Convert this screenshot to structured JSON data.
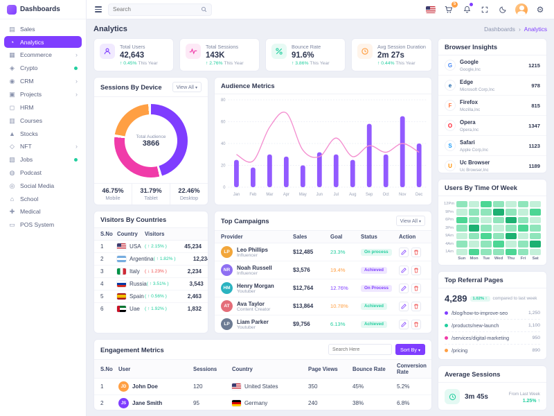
{
  "colors": {
    "primary": "#7f3dff",
    "pink": "#f03ba9",
    "success": "#21ce9e",
    "warning": "#ff9f43",
    "danger": "#ef4b4b",
    "line": "#f48fd0"
  },
  "brand": {
    "title": "Dashboards"
  },
  "topbar": {
    "search_placeholder": "Search",
    "cart_badge": "5"
  },
  "sidebar": {
    "items": [
      {
        "label": "Sales",
        "icon": "▤"
      },
      {
        "label": "Analytics",
        "icon": "◔",
        "active": true
      },
      {
        "label": "Ecommerce",
        "icon": "▦",
        "chevron": true
      },
      {
        "label": "Crypto",
        "icon": "◈",
        "dot": true
      },
      {
        "label": "CRM",
        "icon": "◉",
        "chevron": true
      },
      {
        "label": "Projects",
        "icon": "▣",
        "chevron": true
      },
      {
        "label": "HRM",
        "icon": "◻"
      },
      {
        "label": "Courses",
        "icon": "▥"
      },
      {
        "label": "Stocks",
        "icon": "▲"
      },
      {
        "label": "NFT",
        "icon": "◇",
        "chevron": true
      },
      {
        "label": "Jobs",
        "icon": "▧",
        "dot": true
      },
      {
        "label": "Podcast",
        "icon": "◍"
      },
      {
        "label": "Social Media",
        "icon": "◎"
      },
      {
        "label": "School",
        "icon": "⌂"
      },
      {
        "label": "Medical",
        "icon": "✚"
      },
      {
        "label": "POS System",
        "icon": "▭"
      }
    ]
  },
  "page": {
    "title": "Analytics",
    "breadcrumb_root": "Dashboards",
    "breadcrumb_current": "Analytics"
  },
  "stats": [
    {
      "label": "Total Users",
      "value": "42,643",
      "trend": "0.45%",
      "period": "This Year",
      "icon": "users-icon",
      "color": "#7f3dff"
    },
    {
      "label": "Total Sessions",
      "value": "143K",
      "trend": "2.76%",
      "period": "This Year",
      "icon": "sessions-icon",
      "color": "#f03ba9"
    },
    {
      "label": "Bounce Rate",
      "value": "91.6%",
      "trend": "3.86%",
      "period": "This Year",
      "icon": "bounce-icon",
      "color": "#21ce9e"
    },
    {
      "label": "Avg Session Duration",
      "value": "2m 27s",
      "trend": "0.44%",
      "period": "This Year",
      "icon": "duration-icon",
      "color": "#ff9f43"
    }
  ],
  "sessions_by_device": {
    "title": "Sessions By Device",
    "action": "View All",
    "center_label": "Total Audience",
    "center_value": "3866",
    "segments": [
      {
        "label": "Mobile",
        "pct": "46.75%",
        "value": 46.75,
        "color": "#7f3dff"
      },
      {
        "label": "Tablet",
        "pct": "31.79%",
        "value": 31.79,
        "color": "#f03ba9"
      },
      {
        "label": "Desktop",
        "pct": "22.46%",
        "value": 22.46,
        "color": "#ff9f43"
      }
    ]
  },
  "audience_metrics": {
    "title": "Audience Metrics",
    "chart": {
      "type": "bar+line",
      "categories": [
        "Jan",
        "Feb",
        "Mar",
        "Apr",
        "May",
        "Jun",
        "Jul",
        "Aug",
        "Sep",
        "Oct",
        "Nov",
        "Dec"
      ],
      "bar_series": {
        "name": "Sessions",
        "values": [
          25,
          18,
          30,
          28,
          20,
          32,
          30,
          25,
          58,
          30,
          65,
          40
        ]
      },
      "line_series": {
        "name": "Trend",
        "values": [
          30,
          24,
          55,
          68,
          34,
          28,
          45,
          28,
          38,
          32,
          40,
          32
        ]
      },
      "ylim": [
        0,
        80
      ],
      "yticks": [
        0,
        20,
        40,
        60,
        80
      ]
    }
  },
  "visitors_by_countries": {
    "title": "Visitors By Countries",
    "columns": [
      "S.No",
      "Country",
      "Visitors"
    ],
    "rows": [
      {
        "no": "1",
        "country": "USA",
        "flag": "usa",
        "trend": "2.15%",
        "dir": "up",
        "value": "45,234"
      },
      {
        "no": "2",
        "country": "Argentina",
        "flag": "argentina",
        "trend": "1.82%",
        "dir": "up",
        "value": "12,234"
      },
      {
        "no": "3",
        "country": "Italy",
        "flag": "italy",
        "trend": "1.23%",
        "dir": "down",
        "value": "2,234"
      },
      {
        "no": "4",
        "country": "Russia",
        "flag": "russia",
        "trend": "3.51%",
        "dir": "up",
        "value": "3,543"
      },
      {
        "no": "5",
        "country": "Spain",
        "flag": "spain",
        "trend": "0.56%",
        "dir": "up",
        "value": "2,463"
      },
      {
        "no": "6",
        "country": "Uae",
        "flag": "uae",
        "trend": "1.92%",
        "dir": "up",
        "value": "1,832"
      }
    ]
  },
  "top_campaigns": {
    "title": "Top Campaigns",
    "action": "View All",
    "columns": [
      "Provider",
      "Sales",
      "Goal",
      "Status",
      "Action"
    ],
    "rows": [
      {
        "name": "Leo Phillips",
        "role": "Influencer",
        "initials": "LP",
        "avatar_color": "#f2a63b",
        "sales": "$12,485",
        "goal": "23.3%",
        "goal_color": "#21ce9e",
        "status": "On process",
        "status_color": "#21ce9e"
      },
      {
        "name": "Noah Russell",
        "role": "Influencer",
        "initials": "NR",
        "avatar_color": "#8e6ff2",
        "sales": "$3,576",
        "goal": "19.4%",
        "goal_color": "#ff9f43",
        "status": "Achieved",
        "status_color": "#7f3dff"
      },
      {
        "name": "Henry Morgan",
        "role": "Youtuber",
        "initials": "HM",
        "avatar_color": "#2bb3c0",
        "sales": "$12,764",
        "goal": "12.76%",
        "goal_color": "#7f3dff",
        "status": "On Process",
        "status_color": "#7f3dff"
      },
      {
        "name": "Ava Taylor",
        "role": "Content Creator",
        "initials": "AT",
        "avatar_color": "#e46d79",
        "sales": "$13,864",
        "goal": "10.78%",
        "goal_color": "#ff9f43",
        "status": "Achieved",
        "status_color": "#21ce9e"
      },
      {
        "name": "Liam Parker",
        "role": "Youtuber",
        "initials": "LP",
        "avatar_color": "#6c7b93",
        "sales": "$9,756",
        "goal": "6.13%",
        "goal_color": "#21ce9e",
        "status": "Achieved",
        "status_color": "#21ce9e"
      }
    ]
  },
  "engagement_metrics": {
    "title": "Engagement Metrics",
    "search_placeholder": "Search Here",
    "sort_label": "Sort By",
    "columns": [
      "S.No",
      "User",
      "Sessions",
      "Country",
      "Page Views",
      "Bounce Rate",
      "Conversion Rate"
    ],
    "rows": [
      {
        "no": "1",
        "user": "John Doe",
        "initials": "JD",
        "avatar_color": "#ff9f43",
        "sessions": "120",
        "country": "United States",
        "flag": "usa",
        "page_views": "350",
        "bounce": "45%",
        "conversion": "5.2%"
      },
      {
        "no": "2",
        "user": "Jane Smith",
        "initials": "JS",
        "avatar_color": "#7f3dff",
        "sessions": "95",
        "country": "Germany",
        "flag": "germany",
        "page_views": "240",
        "bounce": "38%",
        "conversion": "6.8%"
      }
    ]
  },
  "browser_insights": {
    "title": "Browser Insights",
    "max": 1347,
    "rows": [
      {
        "name": "Google",
        "company": "Google,Inc",
        "value": "1215",
        "num": 1215,
        "bar_color": "#7f3dff",
        "letter": "G",
        "letter_color": "#4285F4"
      },
      {
        "name": "Edge",
        "company": "Microsoft Corp,Inc",
        "value": "978",
        "num": 978,
        "bar_color": "#f03ba9",
        "letter": "e",
        "letter_color": "#0c59a4"
      },
      {
        "name": "Firefox",
        "company": "Mozilla,Inc",
        "value": "815",
        "num": 815,
        "bar_color": "#ff7139",
        "letter": "F",
        "letter_color": "#ff7139"
      },
      {
        "name": "Opera",
        "company": "Opera,Inc",
        "value": "1347",
        "num": 1347,
        "bar_color": "#845adf",
        "letter": "O",
        "letter_color": "#ff1b2d"
      },
      {
        "name": "Safari",
        "company": "Apple Corp,Inc",
        "value": "1123",
        "num": 1123,
        "bar_color": "#21ce9e",
        "letter": "S",
        "letter_color": "#1b9af7"
      },
      {
        "name": "Uc Browser",
        "company": "Uc Browser,Inc",
        "value": "1189",
        "num": 1189,
        "bar_color": "#ff9f43",
        "letter": "U",
        "letter_color": "#ff8f00"
      }
    ]
  },
  "users_by_time": {
    "title": "Users By Time Of Week",
    "row_labels": [
      "12Pm",
      "9Pm",
      "6Pm",
      "3Pm",
      "9Am",
      "4Am",
      "1Am"
    ],
    "col_labels": [
      "Sun",
      "Mon",
      "Tue",
      "Wed",
      "Thu",
      "Fri",
      "Sat"
    ],
    "palette": [
      "#e9f9f0",
      "#c3f0d9",
      "#8fe5bb",
      "#4cd694",
      "#1db172"
    ],
    "matrix": [
      [
        2,
        1,
        3,
        2,
        1,
        2,
        1
      ],
      [
        1,
        2,
        2,
        4,
        2,
        1,
        3
      ],
      [
        3,
        2,
        1,
        2,
        4,
        2,
        1
      ],
      [
        2,
        4,
        2,
        1,
        2,
        3,
        2
      ],
      [
        1,
        2,
        3,
        2,
        4,
        1,
        2
      ],
      [
        2,
        1,
        2,
        3,
        1,
        2,
        4
      ],
      [
        1,
        3,
        2,
        2,
        3,
        2,
        1
      ]
    ]
  },
  "top_referral": {
    "title": "Top Referral Pages",
    "total": "4,289",
    "badge": "1.02%",
    "note": "compared to last week",
    "rows": [
      {
        "path": "/blog/how-to-improve-seo",
        "value": "1,250",
        "color": "#7f3dff"
      },
      {
        "path": "/products/new-launch",
        "value": "1,100",
        "color": "#21ce9e"
      },
      {
        "path": "/services/digital-marketing",
        "value": "950",
        "color": "#f03ba9"
      },
      {
        "path": "/pricing",
        "value": "890",
        "color": "#ff9f43"
      }
    ]
  },
  "average_sessions": {
    "title": "Average Sessions",
    "value": "3m 45s",
    "note": "From Last Week",
    "trend": "1.25%"
  }
}
